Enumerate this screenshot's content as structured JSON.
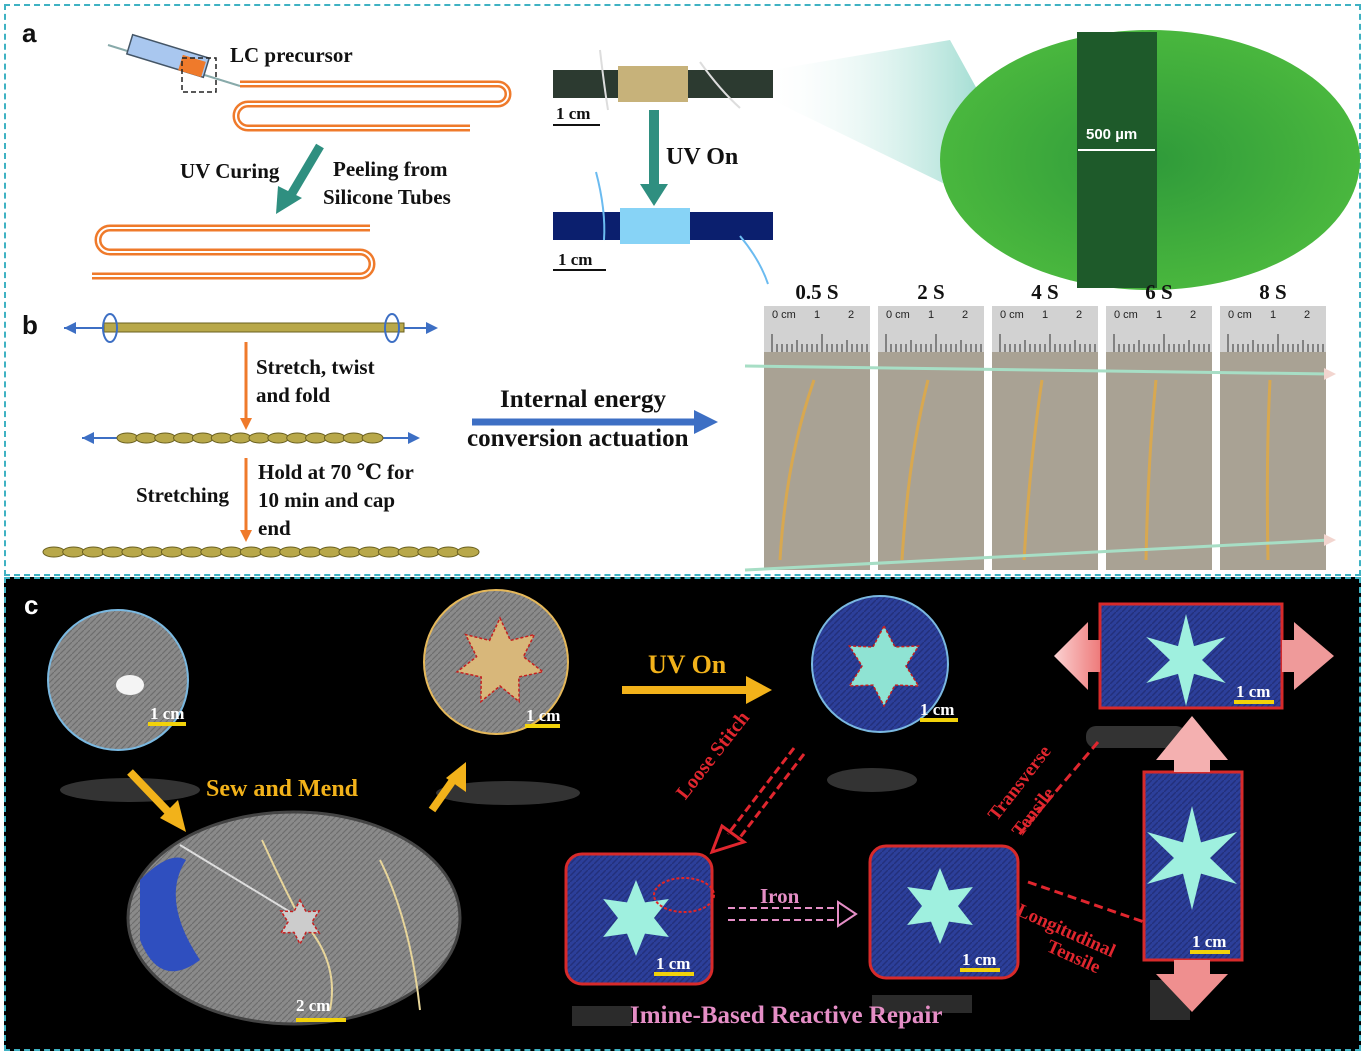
{
  "panel_a": {
    "letter": "a",
    "lc_precursor": "LC precursor",
    "uv_curing": "UV Curing",
    "peeling_line1": "Peeling from",
    "peeling_line2": "Silicone Tubes",
    "uv_on": "UV On",
    "scale_1": "1 cm",
    "scale_2": "1 cm",
    "micro_scale": "500 µm"
  },
  "panel_b": {
    "letter": "b",
    "step1_line1": "Stretch, twist",
    "step1_line2": "and fold",
    "step2_left": "Stretching",
    "step2_line1": "Hold at 70 ℃ for",
    "step2_line2": "10 min and cap",
    "step2_line3": "end",
    "arrow_line1": "Internal energy",
    "arrow_line2": "conversion actuation",
    "timestamps": [
      "0.5 S",
      "2 S",
      "4 S",
      "6 S",
      "8 S"
    ],
    "ruler_labels": [
      "0 cm",
      "1",
      "2"
    ]
  },
  "panel_c": {
    "letter": "c",
    "sew_and_mend": "Sew and Mend",
    "uv_on": "UV On",
    "loose_stitch": "Loose Stitch",
    "iron": "Iron",
    "transverse_line1": "Transverse",
    "transverse_line2": "Tensile",
    "longitudinal_line1": "Longitudinal",
    "longitudinal_line2": "Tensile",
    "imine_repair": "Imine-Based Reactive Repair",
    "scale_1cm": "1 cm",
    "scale_2cm": "2 cm"
  },
  "colors": {
    "border": "#3fb2c3",
    "orange_tube": "#ef7a2b",
    "teal_arrow": "#2f8f80",
    "blue_arrow": "#3d6fc4",
    "gold": "#f2b21a",
    "red_dash": "#e0262e",
    "pink": "#e58ec6"
  }
}
